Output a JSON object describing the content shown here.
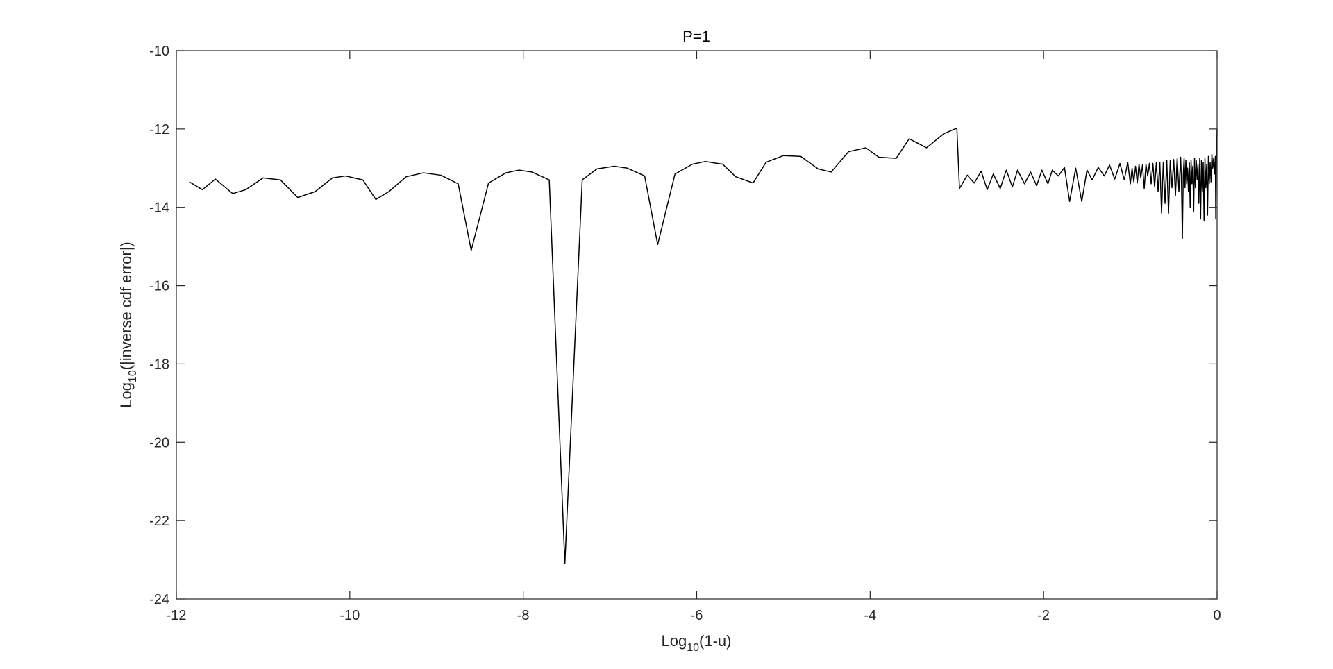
{
  "chart_data": {
    "type": "line",
    "title": "P=1",
    "xlabel": {
      "base": "Log",
      "subscript": "10",
      "rest": "(1-u)"
    },
    "ylabel": {
      "base": "Log",
      "subscript": "10",
      "rest": "(|inverse cdf error|)"
    },
    "xlim": [
      -12,
      0
    ],
    "ylim": [
      -24,
      -10
    ],
    "xticks": [
      -12,
      -10,
      -8,
      -6,
      -4,
      -2,
      0
    ],
    "xtick_labels": [
      "-12",
      "-10",
      "-8",
      "-6",
      "-4",
      "-2",
      "0"
    ],
    "yticks": [
      -24,
      -22,
      -20,
      -18,
      -16,
      -14,
      -12,
      -10
    ],
    "ytick_labels": [
      "-24",
      "-22",
      "-20",
      "-18",
      "-16",
      "-14",
      "-12",
      "-10"
    ],
    "grid": false,
    "box": true,
    "line_color": "#000000",
    "series": [
      {
        "x": [
          -11.85,
          -11.7,
          -11.55,
          -11.35,
          -11.2,
          -11.0,
          -10.8,
          -10.6,
          -10.4,
          -10.2,
          -10.05,
          -9.85,
          -9.7,
          -9.55,
          -9.35,
          -9.15,
          -8.95,
          -8.75,
          -8.6,
          -8.4,
          -8.2,
          -8.05,
          -7.9,
          -7.7,
          -7.52,
          -7.32,
          -7.15,
          -6.95,
          -6.8,
          -6.6,
          -6.45,
          -6.25,
          -6.05,
          -5.9,
          -5.7,
          -5.55,
          -5.35,
          -5.2,
          -5.0,
          -4.8,
          -4.6,
          -4.45,
          -4.25,
          -4.05,
          -3.9,
          -3.7,
          -3.55,
          -3.35,
          -3.15,
          -3.0,
          -2.97,
          -2.88,
          -2.8,
          -2.72,
          -2.65,
          -2.58,
          -2.5,
          -2.43,
          -2.36,
          -2.3,
          -2.22,
          -2.15,
          -2.08,
          -2.02,
          -1.95,
          -1.9,
          -1.83,
          -1.76,
          -1.7,
          -1.63,
          -1.56,
          -1.5,
          -1.44,
          -1.37,
          -1.3,
          -1.24,
          -1.18,
          -1.12,
          -1.07,
          -1.03,
          -1.0,
          -0.98,
          -0.96,
          -0.94,
          -0.92,
          -0.9,
          -0.88,
          -0.86,
          -0.84,
          -0.82,
          -0.8,
          -0.78,
          -0.76,
          -0.74,
          -0.72,
          -0.7,
          -0.68,
          -0.66,
          -0.64,
          -0.62,
          -0.6,
          -0.58,
          -0.56,
          -0.54,
          -0.52,
          -0.5,
          -0.48,
          -0.46,
          -0.44,
          -0.42,
          -0.41,
          -0.4,
          -0.39,
          -0.38,
          -0.37,
          -0.36,
          -0.35,
          -0.34,
          -0.33,
          -0.32,
          -0.31,
          -0.3,
          -0.29,
          -0.28,
          -0.27,
          -0.26,
          -0.25,
          -0.24,
          -0.23,
          -0.22,
          -0.21,
          -0.2,
          -0.19,
          -0.18,
          -0.17,
          -0.16,
          -0.15,
          -0.14,
          -0.13,
          -0.12,
          -0.11,
          -0.1,
          -0.09,
          -0.08,
          -0.07,
          -0.06,
          -0.05,
          -0.04,
          -0.03,
          -0.02,
          -0.015,
          -0.01,
          -0.005,
          0.0
        ],
        "y": [
          -13.35,
          -13.55,
          -13.28,
          -13.65,
          -13.55,
          -13.25,
          -13.3,
          -13.75,
          -13.6,
          -13.25,
          -13.2,
          -13.3,
          -13.8,
          -13.6,
          -13.22,
          -13.12,
          -13.18,
          -13.4,
          -15.1,
          -13.38,
          -13.12,
          -13.05,
          -13.1,
          -13.3,
          -23.1,
          -13.3,
          -13.02,
          -12.95,
          -13.0,
          -13.2,
          -14.95,
          -13.15,
          -12.9,
          -12.83,
          -12.9,
          -13.22,
          -13.38,
          -12.85,
          -12.68,
          -12.7,
          -13.02,
          -13.1,
          -12.58,
          -12.48,
          -12.72,
          -12.75,
          -12.25,
          -12.48,
          -12.12,
          -11.98,
          -13.52,
          -13.18,
          -13.38,
          -13.08,
          -13.55,
          -13.15,
          -13.52,
          -13.05,
          -13.48,
          -13.05,
          -13.4,
          -13.1,
          -13.45,
          -13.05,
          -13.4,
          -13.05,
          -13.2,
          -12.98,
          -13.85,
          -13.0,
          -13.85,
          -13.05,
          -13.3,
          -12.98,
          -13.2,
          -12.92,
          -13.28,
          -12.88,
          -13.3,
          -12.85,
          -13.4,
          -13.0,
          -13.35,
          -12.95,
          -13.38,
          -12.9,
          -13.25,
          -12.92,
          -13.52,
          -12.9,
          -13.2,
          -12.88,
          -13.4,
          -12.88,
          -13.48,
          -12.85,
          -13.6,
          -12.85,
          -14.15,
          -12.85,
          -13.9,
          -12.8,
          -14.15,
          -12.8,
          -13.5,
          -12.78,
          -13.7,
          -12.75,
          -13.6,
          -12.72,
          -13.4,
          -14.8,
          -13.2,
          -12.75,
          -13.5,
          -12.8,
          -13.4,
          -13.0,
          -13.6,
          -12.85,
          -14.0,
          -12.8,
          -13.4,
          -12.95,
          -14.1,
          -12.75,
          -13.5,
          -12.8,
          -13.3,
          -12.9,
          -13.9,
          -12.75,
          -14.3,
          -12.8,
          -13.6,
          -12.85,
          -14.35,
          -12.75,
          -13.5,
          -12.9,
          -14.2,
          -12.7,
          -13.4,
          -12.85,
          -13.35,
          -12.65,
          -13.0,
          -12.75,
          -13.15,
          -12.7,
          -14.3,
          -12.6,
          -12.55,
          -12.0
        ]
      }
    ]
  }
}
